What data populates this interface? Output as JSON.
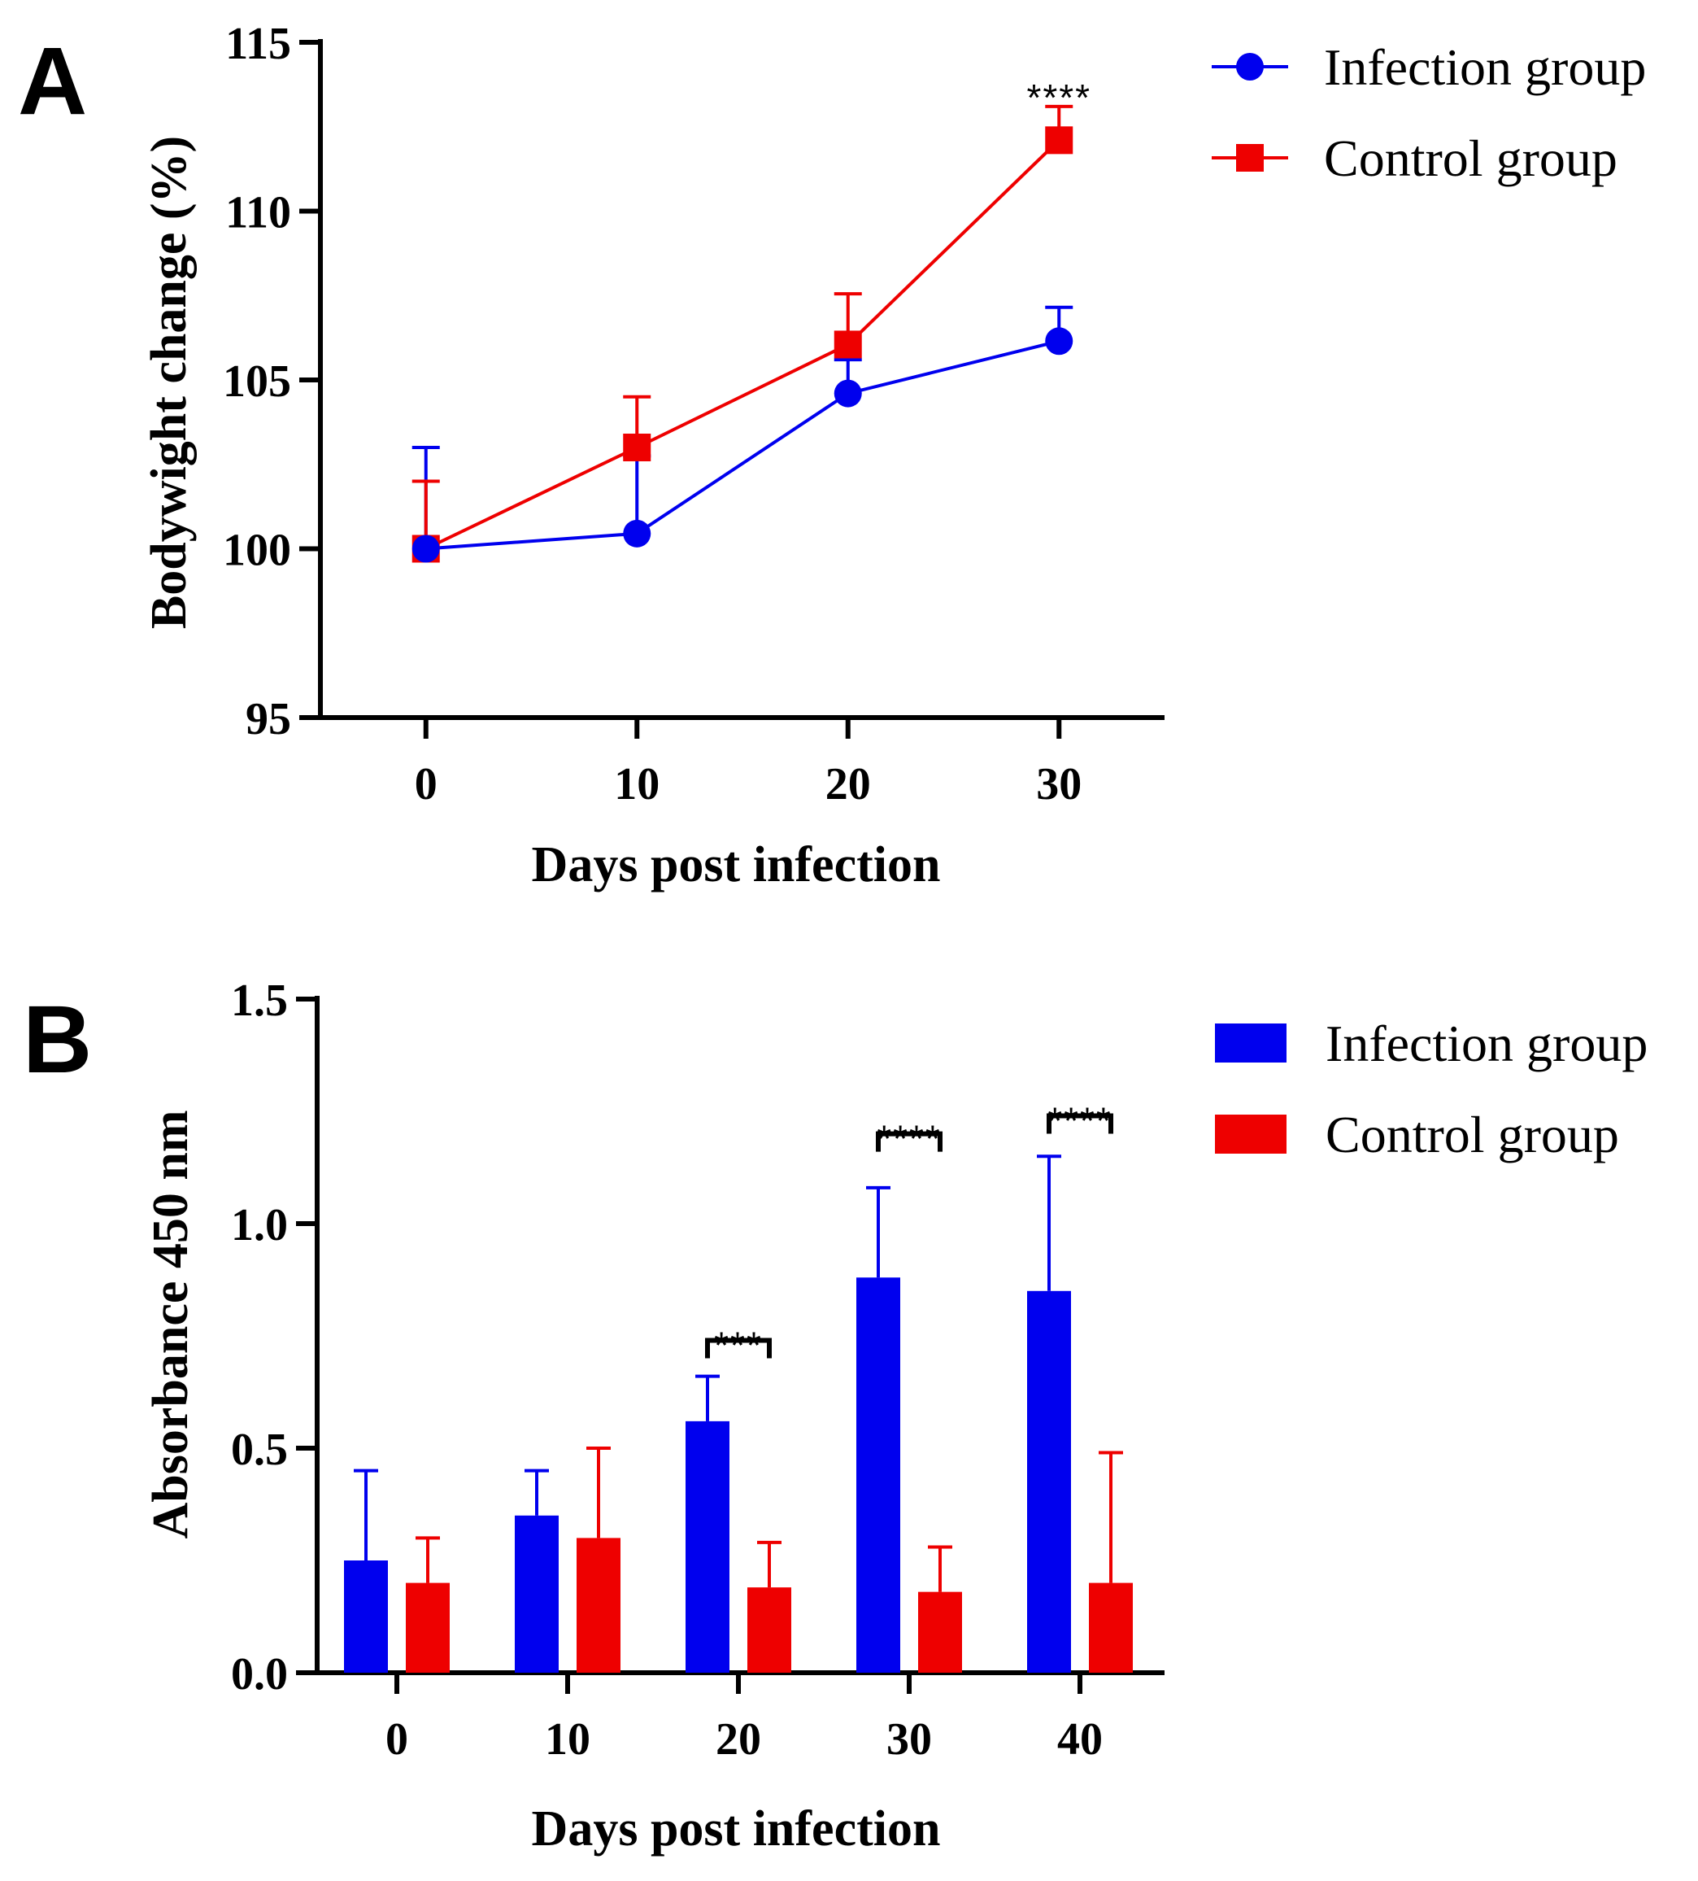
{
  "chart_data": [
    {
      "panel": "A",
      "type": "line",
      "xlabel": "Days post infection",
      "ylabel": "Bodywight change (%)",
      "x": [
        0,
        10,
        20,
        30
      ],
      "xticks": [
        "0",
        "10",
        "20",
        "30"
      ],
      "yticks": [
        "95",
        "100",
        "105",
        "110",
        "115"
      ],
      "ylim": [
        95,
        115
      ],
      "legend_position": "right",
      "series": [
        {
          "name": "Infection group",
          "color": "#0000ee",
          "marker": "circle",
          "values": [
            100,
            100.45,
            104.6,
            106.15
          ],
          "error": [
            3.0,
            2.3,
            1.0,
            1.0
          ]
        },
        {
          "name": "Control group",
          "color": "#ee0000",
          "marker": "square",
          "values": [
            100,
            103.0,
            106.05,
            112.1
          ],
          "error": [
            2.0,
            1.5,
            1.5,
            1.0
          ]
        }
      ],
      "annotations": [
        {
          "x": 30,
          "y": 113.7,
          "text": "****"
        }
      ]
    },
    {
      "panel": "B",
      "type": "bar",
      "xlabel": "Days post infection",
      "ylabel": "Absorbance 450 nm",
      "categories": [
        "0",
        "10",
        "20",
        "30",
        "40"
      ],
      "yticks": [
        "0.0",
        "0.5",
        "1.0",
        "1.5"
      ],
      "ylim": [
        0,
        1.5
      ],
      "legend_position": "right",
      "series": [
        {
          "name": "Infection group",
          "color": "#0000ee",
          "values": [
            0.25,
            0.35,
            0.56,
            0.88,
            0.85
          ],
          "error": [
            0.2,
            0.1,
            0.1,
            0.2,
            0.3
          ]
        },
        {
          "name": "Control group",
          "color": "#ee0000",
          "values": [
            0.2,
            0.3,
            0.19,
            0.18,
            0.2
          ],
          "error": [
            0.1,
            0.2,
            0.1,
            0.1,
            0.29
          ]
        }
      ],
      "annotations": [
        {
          "category": "20",
          "text": "***",
          "y": 0.74
        },
        {
          "category": "30",
          "text": "****",
          "y": 1.2
        },
        {
          "category": "40",
          "text": "****",
          "y": 1.24
        }
      ]
    }
  ]
}
